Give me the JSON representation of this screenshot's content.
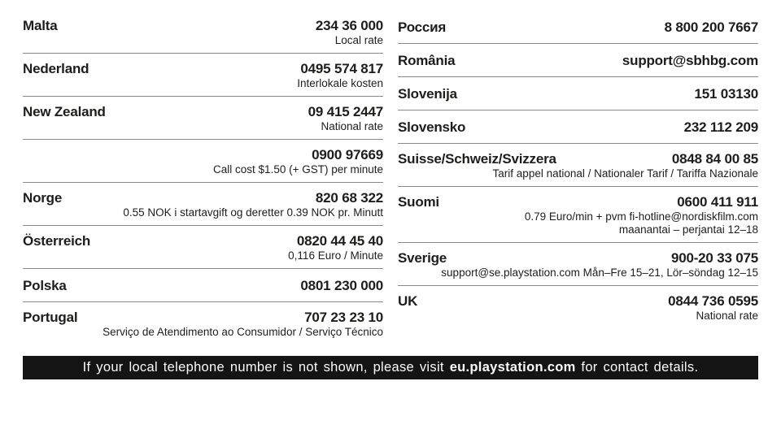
{
  "page": {
    "background": "#ffffff",
    "text_color": "#1d1d1b",
    "divider_color": "#8a8a8a"
  },
  "columns": [
    {
      "entries": [
        {
          "country": "Malta",
          "contact": "234 36 000",
          "notes": [
            "Local rate"
          ]
        },
        {
          "country": "Nederland",
          "contact": "0495 574 817",
          "notes": [
            "Interlokale kosten"
          ]
        },
        {
          "country": "New Zealand",
          "contact": "09 415 2447",
          "notes": [
            "National rate"
          ]
        },
        {
          "country": "",
          "contact": "0900 97669",
          "notes": [
            "Call cost $1.50 (+ GST) per minute"
          ]
        },
        {
          "country": "Norge",
          "contact": "820 68 322",
          "notes": [
            "0.55 NOK i startavgift og deretter 0.39 NOK pr. Minutt"
          ]
        },
        {
          "country": "Österreich",
          "contact": "0820 44 45 40",
          "notes": [
            "0,116 Euro / Minute"
          ]
        },
        {
          "country": "Polska",
          "contact": "0801 230 000",
          "notes": []
        },
        {
          "country": "Portugal",
          "contact": "707 23 23 10",
          "notes": [
            "Serviço de Atendimento ao Consumidor / Serviço Técnico"
          ]
        }
      ]
    },
    {
      "entries": [
        {
          "country": "Россия",
          "contact": "8 800 200 7667",
          "notes": []
        },
        {
          "country": "România",
          "contact": "support@sbhbg.com",
          "notes": []
        },
        {
          "country": "Slovenija",
          "contact": "151 03130",
          "notes": []
        },
        {
          "country": "Slovensko",
          "contact": "232 112 209",
          "notes": []
        },
        {
          "country": "Suisse/Schweiz/Svizzera",
          "contact": "0848 84 00 85",
          "notes": [
            "Tarif appel national / Nationaler Tarif / Tariffa Nazionale"
          ]
        },
        {
          "country": "Suomi",
          "contact": "0600 411 911",
          "notes": [
            "0.79 Euro/min + pvm fi-hotline@nordiskfilm.com",
            "maanantai – perjantai 12–18"
          ]
        },
        {
          "country": "Sverige",
          "contact": "900-20 33 075",
          "notes": [
            "support@se.playstation.com Mån–Fre 15–21, Lör–söndag 12–15"
          ]
        },
        {
          "country": "UK",
          "contact": "0844 736 0595",
          "notes": [
            "National rate"
          ]
        }
      ]
    }
  ],
  "footer": {
    "prefix": "If your local telephone number is not shown, please visit ",
    "highlight": "eu.playstation.com",
    "suffix": " for contact details.",
    "background": "#141414",
    "text_color": "#fafafa"
  }
}
